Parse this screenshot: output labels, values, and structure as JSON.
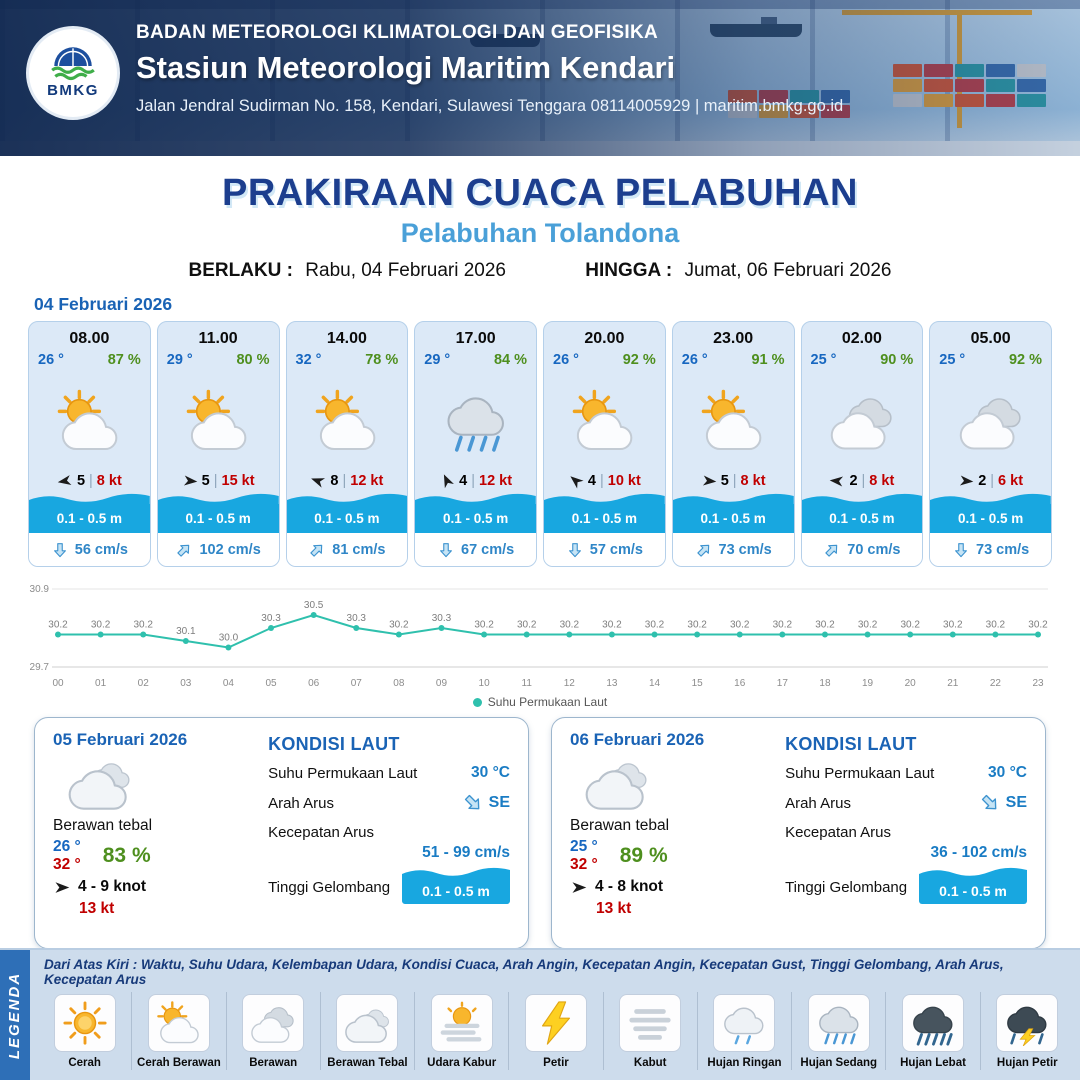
{
  "header": {
    "logo": "BMKG",
    "agency": "BADAN METEOROLOGI KLIMATOLOGI DAN GEOFISIKA",
    "station": "Stasiun Meteorologi Maritim Kendari",
    "address": "Jalan Jendral Sudirman No. 158, Kendari, Sulawesi Tenggara  08114005929 | maritim.bmkg.go.id"
  },
  "title": {
    "main": "PRAKIRAAN CUACA PELABUHAN",
    "subtitle": "Pelabuhan Tolandona",
    "valid_from_label": "BERLAKU :",
    "valid_from": "Rabu, 04 Februari 2026",
    "valid_to_label": "HINGGA :",
    "valid_to": "Jumat, 06 Februari 2026"
  },
  "forecast_date": "04 Februari 2026",
  "ui": {
    "pipe": "|"
  },
  "forecast_cards": [
    {
      "time": "08.00",
      "temp": "26 °",
      "humidity": "87 %",
      "weather": "cerah-berawan",
      "wind_val": "5",
      "wind_speed": "8 kt",
      "wind_deg": 170,
      "wave": "0.1 - 0.5 m",
      "current": "56 cm/s",
      "current_deg": 90
    },
    {
      "time": "11.00",
      "temp": "29 °",
      "humidity": "80 %",
      "weather": "cerah-berawan",
      "wind_val": "5",
      "wind_speed": "15 kt",
      "wind_deg": 5,
      "wave": "0.1 - 0.5 m",
      "current": "102 cm/s",
      "current_deg": -45
    },
    {
      "time": "14.00",
      "temp": "32 °",
      "humidity": "78 %",
      "weather": "cerah-berawan",
      "wind_val": "8",
      "wind_speed": "12 kt",
      "wind_deg": 200,
      "wave": "0.1 - 0.5 m",
      "current": "81 cm/s",
      "current_deg": -45
    },
    {
      "time": "17.00",
      "temp": "29 °",
      "humidity": "84 %",
      "weather": "hujan-sedang",
      "wind_val": "4",
      "wind_speed": "12 kt",
      "wind_deg": 245,
      "wave": "0.1 - 0.5 m",
      "current": "67 cm/s",
      "current_deg": 90
    },
    {
      "time": "20.00",
      "temp": "26 °",
      "humidity": "92 %",
      "weather": "cerah-berawan",
      "wind_val": "4",
      "wind_speed": "10 kt",
      "wind_deg": 220,
      "wave": "0.1 - 0.5 m",
      "current": "57 cm/s",
      "current_deg": 90
    },
    {
      "time": "23.00",
      "temp": "26 °",
      "humidity": "91 %",
      "weather": "cerah-berawan",
      "wind_val": "5",
      "wind_speed": "8 kt",
      "wind_deg": 5,
      "wave": "0.1 - 0.5 m",
      "current": "73 cm/s",
      "current_deg": -45
    },
    {
      "time": "02.00",
      "temp": "25 °",
      "humidity": "90 %",
      "weather": "berawan",
      "wind_val": "2",
      "wind_speed": "8 kt",
      "wind_deg": 185,
      "wave": "0.1 - 0.5 m",
      "current": "70 cm/s",
      "current_deg": -45
    },
    {
      "time": "05.00",
      "temp": "25 °",
      "humidity": "92 %",
      "weather": "berawan",
      "wind_val": "2",
      "wind_speed": "6 kt",
      "wind_deg": 5,
      "wave": "0.1 - 0.5 m",
      "current": "73 cm/s",
      "current_deg": 90
    }
  ],
  "chart_data": {
    "type": "line",
    "title": "",
    "x": [
      "00",
      "01",
      "02",
      "03",
      "04",
      "05",
      "06",
      "07",
      "08",
      "09",
      "10",
      "11",
      "12",
      "13",
      "14",
      "15",
      "16",
      "17",
      "18",
      "19",
      "20",
      "21",
      "22",
      "23"
    ],
    "series": [
      {
        "name": "Suhu Permukaan Laut",
        "values": [
          30.2,
          30.2,
          30.2,
          30.1,
          30.0,
          30.3,
          30.5,
          30.3,
          30.2,
          30.3,
          30.2,
          30.2,
          30.2,
          30.2,
          30.2,
          30.2,
          30.2,
          30.2,
          30.2,
          30.2,
          30.2,
          30.2,
          30.2,
          30.2
        ]
      }
    ],
    "ylim": [
      29.7,
      30.9
    ],
    "yticks": [
      30.9,
      29.7
    ],
    "xlabel": "",
    "ylabel": "",
    "grid": false,
    "legend_position": "bottom",
    "line_color": "#2fc0ad"
  },
  "daily_cards": [
    {
      "date": "05 Februari 2026",
      "weather": "berawan-tebal",
      "weather_desc": "Berawan tebal",
      "temp_min": "26 °",
      "temp_max": "32 °",
      "humidity": "83 %",
      "wind": "4 - 9 knot",
      "gust": "13 kt",
      "sea_title": "KONDISI LAUT",
      "sst_label": "Suhu Permukaan Laut",
      "sst": "30 °C",
      "current_dir_label": "Arah Arus",
      "current_dir": "SE",
      "current_deg": 45,
      "current_speed_label": "Kecepatan Arus",
      "current_speed": "51 - 99 cm/s",
      "wave_label": "Tinggi Gelombang",
      "wave": "0.1 - 0.5 m"
    },
    {
      "date": "06 Februari 2026",
      "weather": "berawan-tebal",
      "weather_desc": "Berawan tebal",
      "temp_min": "25 °",
      "temp_max": "32 °",
      "humidity": "89 %",
      "wind": "4 - 8 knot",
      "gust": "13 kt",
      "sea_title": "KONDISI LAUT",
      "sst_label": "Suhu Permukaan Laut",
      "sst": "30 °C",
      "current_dir_label": "Arah Arus",
      "current_dir": "SE",
      "current_deg": 45,
      "current_speed_label": "Kecepatan Arus",
      "current_speed": "36 - 102 cm/s",
      "wave_label": "Tinggi Gelombang",
      "wave": "0.1 - 0.5 m"
    }
  ],
  "legend": {
    "band": "LEGENDA",
    "intro": "Dari Atas Kiri : Waktu, Suhu Udara, Kelembapan Udara, Kondisi Cuaca, Arah Angin, Kecepatan Angin, Kecepatan Gust, Tinggi Gelombang, Arah Arus, Kecepatan Arus",
    "items": [
      {
        "label": "Cerah",
        "icon": "cerah"
      },
      {
        "label": "Cerah Berawan",
        "icon": "cerah-berawan"
      },
      {
        "label": "Berawan",
        "icon": "berawan"
      },
      {
        "label": "Berawan Tebal",
        "icon": "berawan-tebal"
      },
      {
        "label": "Udara Kabur",
        "icon": "udara-kabur"
      },
      {
        "label": "Petir",
        "icon": "petir"
      },
      {
        "label": "Kabut",
        "icon": "kabut"
      },
      {
        "label": "Hujan Ringan",
        "icon": "hujan-ringan"
      },
      {
        "label": "Hujan Sedang",
        "icon": "hujan-sedang"
      },
      {
        "label": "Hujan Lebat",
        "icon": "hujan-lebat"
      },
      {
        "label": "Hujan Petir",
        "icon": "hujan-petir"
      }
    ]
  },
  "colors": {
    "title_navy": "#1c3e8e",
    "subtitle_blue": "#4aa0d8",
    "temp_blue": "#1767c0",
    "humidity_green": "#4e8f1e",
    "speed_red": "#c00000",
    "wave_blue": "#18a7e0",
    "current_blue": "#2f86c7",
    "sst_line": "#2fc0ad",
    "legend_band_blue": "#2e6fb7"
  }
}
